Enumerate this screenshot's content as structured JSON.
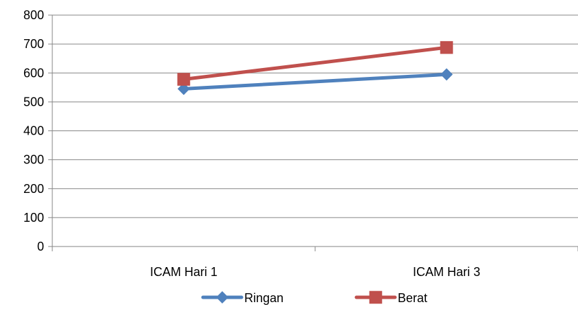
{
  "chart_data": {
    "type": "line",
    "title": "",
    "xlabel": "",
    "ylabel": "",
    "categories": [
      "ICAM Hari 1",
      "ICAM Hari 3"
    ],
    "ylim": [
      0,
      800
    ],
    "yticks": [
      0,
      100,
      200,
      300,
      400,
      500,
      600,
      700,
      800
    ],
    "grid": true,
    "legend_position": "bottom",
    "series": [
      {
        "name": "Ringan",
        "values": [
          545,
          595
        ],
        "color": "#4F81BD",
        "marker": "diamond"
      },
      {
        "name": "Berat",
        "values": [
          578,
          688
        ],
        "color": "#C0504D",
        "marker": "square"
      }
    ]
  }
}
